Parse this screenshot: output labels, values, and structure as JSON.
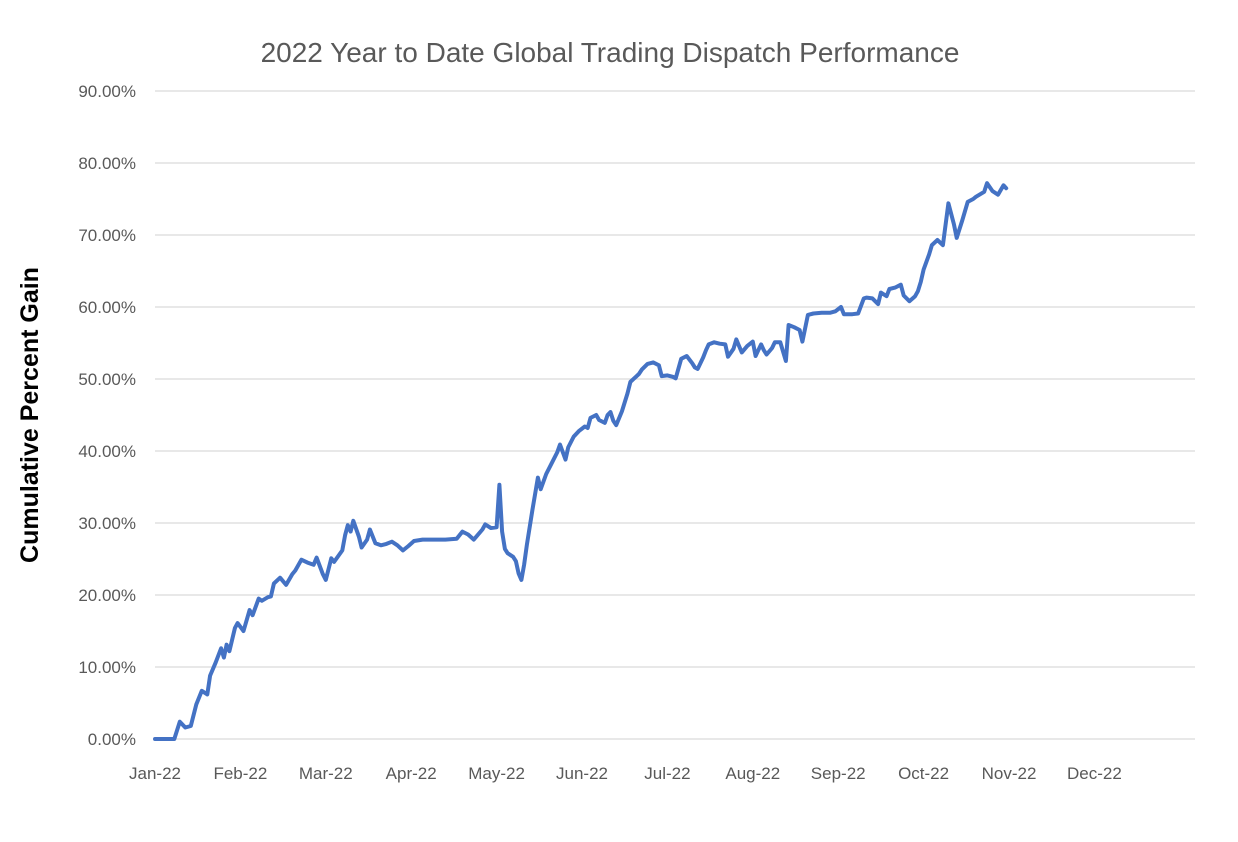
{
  "chart_data": {
    "type": "line",
    "title": "2022 Year to Date Global Trading Dispatch Performance",
    "ylabel": "Cumulative Percent Gain",
    "xlabel": "",
    "y_unit": "percent",
    "x_unit": "date-2022",
    "ylim": [
      0,
      90
    ],
    "y_tick_step": 10,
    "y_tick_labels": [
      "0.00%",
      "10.00%",
      "20.00%",
      "30.00%",
      "40.00%",
      "50.00%",
      "60.00%",
      "70.00%",
      "80.00%",
      "90.00%"
    ],
    "x_tick_labels": [
      "Jan-22",
      "Feb-22",
      "Mar-22",
      "Apr-22",
      "May-22",
      "Jun-22",
      "Jul-22",
      "Aug-22",
      "Sep-22",
      "Oct-22",
      "Nov-22",
      "Dec-22"
    ],
    "grid": "horizontal",
    "legend": "none",
    "markers": "none",
    "colors": {
      "line": "#4472C4",
      "grid": "#D9D9D9",
      "title_text": "#595959",
      "tick_text": "#595959",
      "axis_title_text": "#000000",
      "background": "#FFFFFF"
    },
    "series_name": "Cumulative Percent Gain",
    "points": [
      [
        "01-01",
        0.0
      ],
      [
        "01-04",
        0.0
      ],
      [
        "01-08",
        0.0
      ],
      [
        "01-10",
        2.4
      ],
      [
        "01-12",
        1.6
      ],
      [
        "01-14",
        1.8
      ],
      [
        "01-16",
        4.8
      ],
      [
        "01-18",
        6.7
      ],
      [
        "01-20",
        6.2
      ],
      [
        "01-21",
        8.8
      ],
      [
        "01-23",
        10.6
      ],
      [
        "01-25",
        12.6
      ],
      [
        "01-26",
        11.3
      ],
      [
        "01-27",
        13.1
      ],
      [
        "01-28",
        12.2
      ],
      [
        "01-30",
        15.4
      ],
      [
        "01-31",
        16.1
      ],
      [
        "02-02",
        15.0
      ],
      [
        "02-04",
        17.9
      ],
      [
        "02-05",
        17.2
      ],
      [
        "02-07",
        19.5
      ],
      [
        "02-08",
        19.2
      ],
      [
        "02-10",
        19.7
      ],
      [
        "02-11",
        19.8
      ],
      [
        "02-12",
        21.6
      ],
      [
        "02-14",
        22.4
      ],
      [
        "02-16",
        21.4
      ],
      [
        "02-18",
        22.9
      ],
      [
        "02-19",
        23.4
      ],
      [
        "02-21",
        24.9
      ],
      [
        "02-23",
        24.5
      ],
      [
        "02-25",
        24.2
      ],
      [
        "02-26",
        25.2
      ],
      [
        "02-28",
        22.9
      ],
      [
        "03-01",
        22.1
      ],
      [
        "03-03",
        25.1
      ],
      [
        "03-04",
        24.6
      ],
      [
        "03-07",
        26.2
      ],
      [
        "03-08",
        28.3
      ],
      [
        "03-09",
        29.7
      ],
      [
        "03-10",
        28.8
      ],
      [
        "03-11",
        30.3
      ],
      [
        "03-13",
        28.1
      ],
      [
        "03-14",
        26.6
      ],
      [
        "03-16",
        27.7
      ],
      [
        "03-17",
        29.1
      ],
      [
        "03-19",
        27.2
      ],
      [
        "03-21",
        26.9
      ],
      [
        "03-23",
        27.1
      ],
      [
        "03-25",
        27.4
      ],
      [
        "03-27",
        26.9
      ],
      [
        "03-29",
        26.2
      ],
      [
        "03-31",
        26.8
      ],
      [
        "04-02",
        27.5
      ],
      [
        "04-05",
        27.7
      ],
      [
        "04-09",
        27.7
      ],
      [
        "04-13",
        27.7
      ],
      [
        "04-17",
        27.8
      ],
      [
        "04-19",
        28.8
      ],
      [
        "04-21",
        28.4
      ],
      [
        "04-23",
        27.7
      ],
      [
        "04-26",
        29.1
      ],
      [
        "04-27",
        29.8
      ],
      [
        "04-29",
        29.3
      ],
      [
        "05-01",
        29.4
      ],
      [
        "05-02",
        35.3
      ],
      [
        "05-03",
        28.8
      ],
      [
        "05-04",
        26.4
      ],
      [
        "05-05",
        25.8
      ],
      [
        "05-07",
        25.3
      ],
      [
        "05-08",
        24.7
      ],
      [
        "05-09",
        23.0
      ],
      [
        "05-10",
        22.1
      ],
      [
        "05-11",
        24.2
      ],
      [
        "05-12",
        27.0
      ],
      [
        "05-14",
        31.8
      ],
      [
        "05-16",
        36.3
      ],
      [
        "05-17",
        34.7
      ],
      [
        "05-19",
        36.8
      ],
      [
        "05-21",
        38.3
      ],
      [
        "05-23",
        39.8
      ],
      [
        "05-24",
        40.9
      ],
      [
        "05-26",
        38.8
      ],
      [
        "05-27",
        40.5
      ],
      [
        "05-29",
        42.0
      ],
      [
        "05-31",
        42.8
      ],
      [
        "06-02",
        43.4
      ],
      [
        "06-03",
        43.2
      ],
      [
        "06-04",
        44.6
      ],
      [
        "06-06",
        45.0
      ],
      [
        "06-07",
        44.3
      ],
      [
        "06-09",
        43.9
      ],
      [
        "06-10",
        45.0
      ],
      [
        "06-11",
        45.4
      ],
      [
        "06-12",
        44.2
      ],
      [
        "06-13",
        43.6
      ],
      [
        "06-15",
        45.5
      ],
      [
        "06-17",
        48.0
      ],
      [
        "06-18",
        49.6
      ],
      [
        "06-21",
        50.7
      ],
      [
        "06-22",
        51.3
      ],
      [
        "06-24",
        52.1
      ],
      [
        "06-26",
        52.3
      ],
      [
        "06-28",
        51.9
      ],
      [
        "06-29",
        50.4
      ],
      [
        "07-01",
        50.5
      ],
      [
        "07-03",
        50.3
      ],
      [
        "07-04",
        50.1
      ],
      [
        "07-06",
        52.8
      ],
      [
        "07-08",
        53.2
      ],
      [
        "07-10",
        52.2
      ],
      [
        "07-11",
        51.6
      ],
      [
        "07-12",
        51.4
      ],
      [
        "07-14",
        53.0
      ],
      [
        "07-15",
        54.0
      ],
      [
        "07-16",
        54.8
      ],
      [
        "07-18",
        55.1
      ],
      [
        "07-20",
        54.9
      ],
      [
        "07-22",
        54.8
      ],
      [
        "07-23",
        53.1
      ],
      [
        "07-25",
        54.2
      ],
      [
        "07-26",
        55.5
      ],
      [
        "07-27",
        54.6
      ],
      [
        "07-28",
        53.7
      ],
      [
        "07-30",
        54.6
      ],
      [
        "08-01",
        55.2
      ],
      [
        "08-02",
        53.2
      ],
      [
        "08-03",
        54.0
      ],
      [
        "08-04",
        54.8
      ],
      [
        "08-05",
        54.0
      ],
      [
        "08-06",
        53.4
      ],
      [
        "08-08",
        54.3
      ],
      [
        "08-09",
        55.1
      ],
      [
        "08-11",
        55.1
      ],
      [
        "08-13",
        52.5
      ],
      [
        "08-14",
        57.5
      ],
      [
        "08-16",
        57.2
      ],
      [
        "08-18",
        56.8
      ],
      [
        "08-19",
        55.2
      ],
      [
        "08-21",
        58.9
      ],
      [
        "08-23",
        59.1
      ],
      [
        "08-26",
        59.2
      ],
      [
        "08-29",
        59.2
      ],
      [
        "08-31",
        59.4
      ],
      [
        "09-02",
        60.0
      ],
      [
        "09-03",
        59.0
      ],
      [
        "09-06",
        59.0
      ],
      [
        "09-08",
        59.1
      ],
      [
        "09-10",
        61.2
      ],
      [
        "09-11",
        61.3
      ],
      [
        "09-13",
        61.2
      ],
      [
        "09-15",
        60.4
      ],
      [
        "09-16",
        62.0
      ],
      [
        "09-18",
        61.5
      ],
      [
        "09-19",
        62.5
      ],
      [
        "09-21",
        62.7
      ],
      [
        "09-23",
        63.1
      ],
      [
        "09-24",
        61.6
      ],
      [
        "09-26",
        60.8
      ],
      [
        "09-28",
        61.5
      ],
      [
        "09-29",
        62.2
      ],
      [
        "09-30",
        63.5
      ],
      [
        "10-01",
        65.2
      ],
      [
        "10-03",
        67.3
      ],
      [
        "10-04",
        68.6
      ],
      [
        "10-06",
        69.3
      ],
      [
        "10-08",
        68.6
      ],
      [
        "10-10",
        74.4
      ],
      [
        "10-12",
        71.5
      ],
      [
        "10-13",
        69.6
      ],
      [
        "10-15",
        72.0
      ],
      [
        "10-17",
        74.6
      ],
      [
        "10-19",
        75.0
      ],
      [
        "10-20",
        75.3
      ],
      [
        "10-23",
        76.0
      ],
      [
        "10-24",
        77.2
      ],
      [
        "10-26",
        76.1
      ],
      [
        "10-28",
        75.6
      ],
      [
        "10-30",
        76.9
      ],
      [
        "10-31",
        76.5
      ]
    ]
  }
}
